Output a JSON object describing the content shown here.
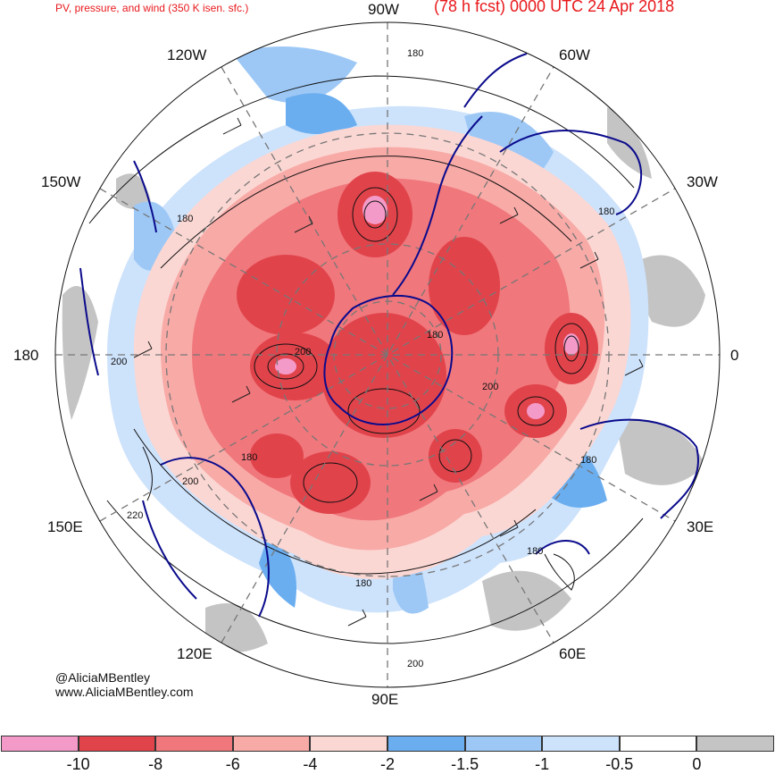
{
  "header": {
    "left_title": "PV, pressure, and wind (350 K isen. sfc.)",
    "right_title": "(78 h fcst) 0000 UTC 24 Apr 2018"
  },
  "map": {
    "projection": "south polar stereographic",
    "longitude_labels": [
      "90W",
      "60W",
      "30W",
      "0",
      "30E",
      "60E",
      "90E",
      "120E",
      "150E",
      "180",
      "150W",
      "120W"
    ],
    "contour_labels": [
      "180",
      "180",
      "180",
      "180",
      "200",
      "180",
      "200",
      "180",
      "200",
      "220",
      "180",
      "180",
      "200",
      "200"
    ],
    "colors": {
      "coastline": "#0a0a8c",
      "grid": "#777777",
      "contour": "#111111"
    }
  },
  "credit": {
    "handle": "@AliciaMBentley",
    "website": "www.AliciaMBentley.com"
  },
  "colorbar": {
    "ticks": [
      "-10",
      "-8",
      "-6",
      "-4",
      "-2",
      "-1.5",
      "-1",
      "-0.5",
      "0"
    ],
    "colors": [
      "#f49ac8",
      "#e1434b",
      "#f0777b",
      "#f8aaa7",
      "#fbd7d3",
      "#6aaef0",
      "#9dc8f6",
      "#cde2fb",
      "#ffffff",
      "#c4c4c4"
    ]
  }
}
